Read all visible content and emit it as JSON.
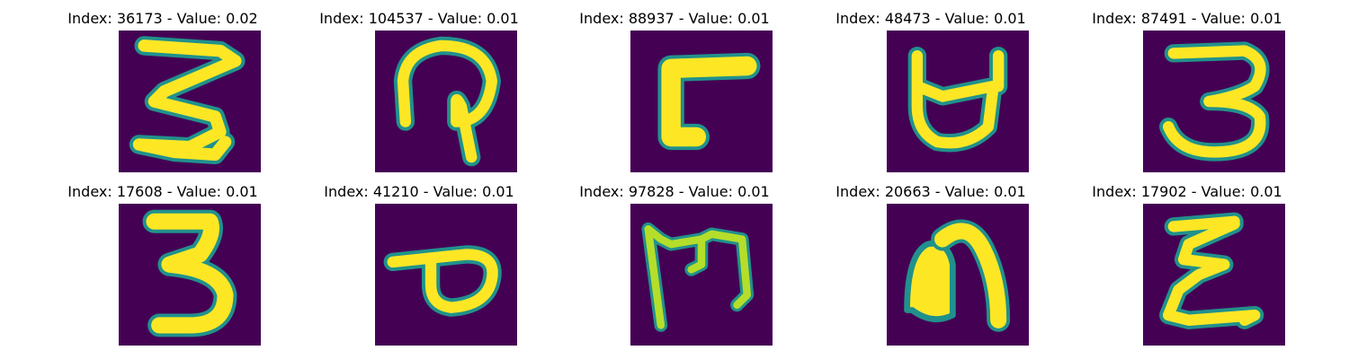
{
  "colors": {
    "background": "#440154",
    "mid": "#21918c",
    "light": "#b5de2b",
    "bright": "#fde725"
  },
  "panels": [
    {
      "title": "Index: 36173 - Value: 0.02",
      "glyph": "glyph-z-like"
    },
    {
      "title": "Index: 104537 - Value: 0.01",
      "glyph": "glyph-loop-hook"
    },
    {
      "title": "Index: 88937 - Value: 0.01",
      "glyph": "glyph-corner"
    },
    {
      "title": "Index: 48473 - Value: 0.01",
      "glyph": "glyph-cup"
    },
    {
      "title": "Index: 87491 - Value: 0.01",
      "glyph": "glyph-three"
    },
    {
      "title": "Index: 17608 - Value: 0.01",
      "glyph": "glyph-three"
    },
    {
      "title": "Index: 41210 - Value: 0.01",
      "glyph": "glyph-p-like"
    },
    {
      "title": "Index: 97828 - Value: 0.01",
      "glyph": "glyph-m-like"
    },
    {
      "title": "Index: 20663 - Value: 0.01",
      "glyph": "glyph-n-like"
    },
    {
      "title": "Index: 17902 - Value: 0.01",
      "glyph": "glyph-epsilon"
    }
  ]
}
